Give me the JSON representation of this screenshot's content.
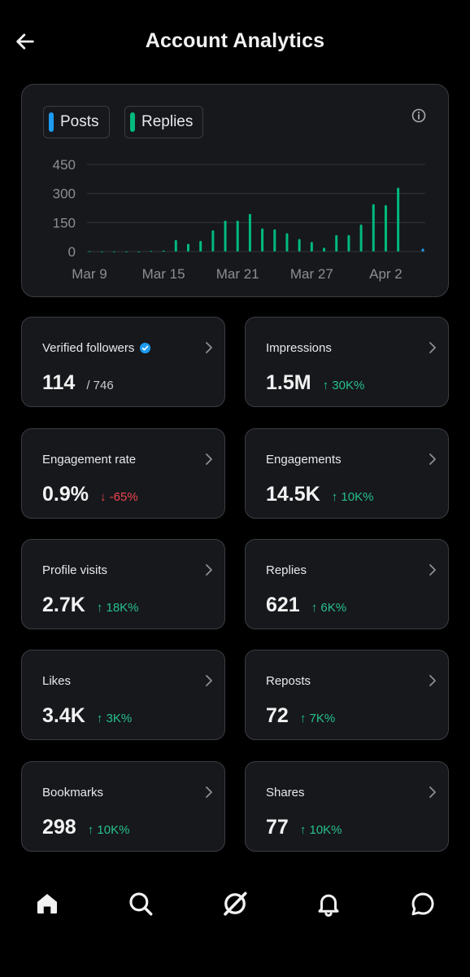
{
  "header": {
    "title": "Account Analytics",
    "back_icon": "arrow-left-icon"
  },
  "legend": [
    {
      "label": "Posts",
      "color": "#1d9bf0"
    },
    {
      "label": "Replies",
      "color": "#00ba7c"
    }
  ],
  "chart_data": {
    "type": "bar",
    "y_ticks": [
      "450",
      "300",
      "150",
      "0"
    ],
    "ylim": [
      0,
      450
    ],
    "x_tick_labels": [
      "Mar 9",
      "Mar 15",
      "Mar 21",
      "Mar 27",
      "Apr 2"
    ],
    "categories": [
      "Mar 9",
      "Mar 10",
      "Mar 11",
      "Mar 12",
      "Mar 13",
      "Mar 14",
      "Mar 15",
      "Mar 16",
      "Mar 17",
      "Mar 18",
      "Mar 19",
      "Mar 20",
      "Mar 21",
      "Mar 22",
      "Mar 23",
      "Mar 24",
      "Mar 25",
      "Mar 26",
      "Mar 27",
      "Mar 28",
      "Mar 29",
      "Mar 30",
      "Mar 31",
      "Apr 1",
      "Apr 2",
      "Apr 3",
      "Apr 4",
      "Apr 5"
    ],
    "series": [
      {
        "name": "Posts",
        "color": "#1d9bf0",
        "values": [
          0,
          0,
          0,
          0,
          0,
          0,
          0,
          0,
          0,
          0,
          0,
          0,
          0,
          0,
          0,
          0,
          0,
          0,
          0,
          0,
          0,
          0,
          0,
          0,
          0,
          0,
          0,
          15
        ]
      },
      {
        "name": "Replies",
        "color": "#00ba7c",
        "values": [
          2,
          1,
          1,
          1,
          1,
          3,
          5,
          60,
          40,
          55,
          110,
          160,
          160,
          195,
          120,
          115,
          95,
          65,
          50,
          20,
          85,
          85,
          140,
          245,
          240,
          330,
          0,
          0
        ]
      }
    ],
    "grid": true
  },
  "stats": [
    {
      "label": "Verified followers",
      "value": "114",
      "sub": "/ 746",
      "verified": true
    },
    {
      "label": "Impressions",
      "value": "1.5M",
      "delta": "↑ 30K%",
      "direction": "up"
    },
    {
      "label": "Engagement rate",
      "value": "0.9%",
      "delta": "↓ -65%",
      "direction": "down"
    },
    {
      "label": "Engagements",
      "value": "14.5K",
      "delta": "↑ 10K%",
      "direction": "up"
    },
    {
      "label": "Profile visits",
      "value": "2.7K",
      "delta": "↑ 18K%",
      "direction": "up"
    },
    {
      "label": "Replies",
      "value": "621",
      "delta": "↑ 6K%",
      "direction": "up"
    },
    {
      "label": "Likes",
      "value": "3.4K",
      "delta": "↑ 3K%",
      "direction": "up"
    },
    {
      "label": "Reposts",
      "value": "72",
      "delta": "↑ 7K%",
      "direction": "up"
    },
    {
      "label": "Bookmarks",
      "value": "298",
      "delta": "↑ 10K%",
      "direction": "up"
    },
    {
      "label": "Shares",
      "value": "77",
      "delta": "↑ 10K%",
      "direction": "up"
    }
  ],
  "nav": [
    "home-icon",
    "search-icon",
    "grok-icon",
    "notifications-bell-icon",
    "messages-icon"
  ]
}
